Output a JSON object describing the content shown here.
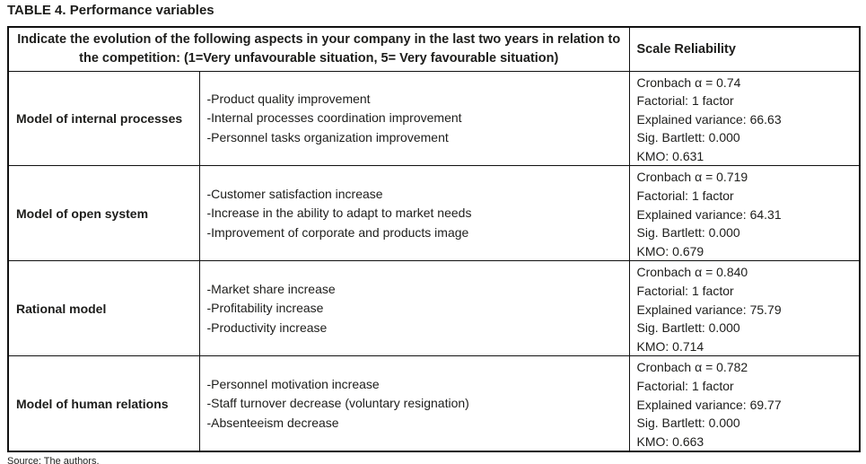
{
  "title": "TABLE 4. Performance variables",
  "source": "Source: The authors.",
  "table": {
    "header": {
      "question": "Indicate the evolution of the following aspects in your company in the last two years in relation to the competition: (1=Very unfavourable situation, 5= Very favourable situation)",
      "reliability": "Scale Reliability"
    },
    "rows": [
      {
        "model": "Model of internal processes",
        "items": [
          "-Product quality improvement",
          "-Internal processes coordination improvement",
          "-Personnel tasks organization improvement"
        ],
        "stats": [
          "Cronbach α = 0.74",
          "Factorial: 1 factor",
          "Explained variance: 66.63",
          "Sig. Bartlett: 0.000",
          "KMO: 0.631"
        ]
      },
      {
        "model": "Model of open system",
        "items": [
          "-Customer satisfaction increase",
          "-Increase in the ability to adapt to market needs",
          "-Improvement of corporate and products image"
        ],
        "stats": [
          "Cronbach α = 0.719",
          "Factorial: 1 factor",
          "Explained variance: 64.31",
          "Sig. Bartlett: 0.000",
          "KMO: 0.679"
        ]
      },
      {
        "model": "Rational model",
        "items": [
          "-Market share increase",
          "-Profitability increase",
          "-Productivity increase"
        ],
        "stats": [
          "Cronbach α = 0.840",
          "Factorial: 1 factor",
          "Explained variance: 75.79",
          "Sig. Bartlett: 0.000",
          "KMO: 0.714"
        ]
      },
      {
        "model": "Model of human relations",
        "items": [
          "-Personnel motivation increase",
          "-Staff turnover decrease (voluntary resignation)",
          "-Absenteeism decrease"
        ],
        "stats": [
          "Cronbach α = 0.782",
          "Factorial: 1 factor",
          "Explained variance: 69.77",
          "Sig. Bartlett: 0.000",
          "KMO: 0.663"
        ]
      }
    ]
  }
}
